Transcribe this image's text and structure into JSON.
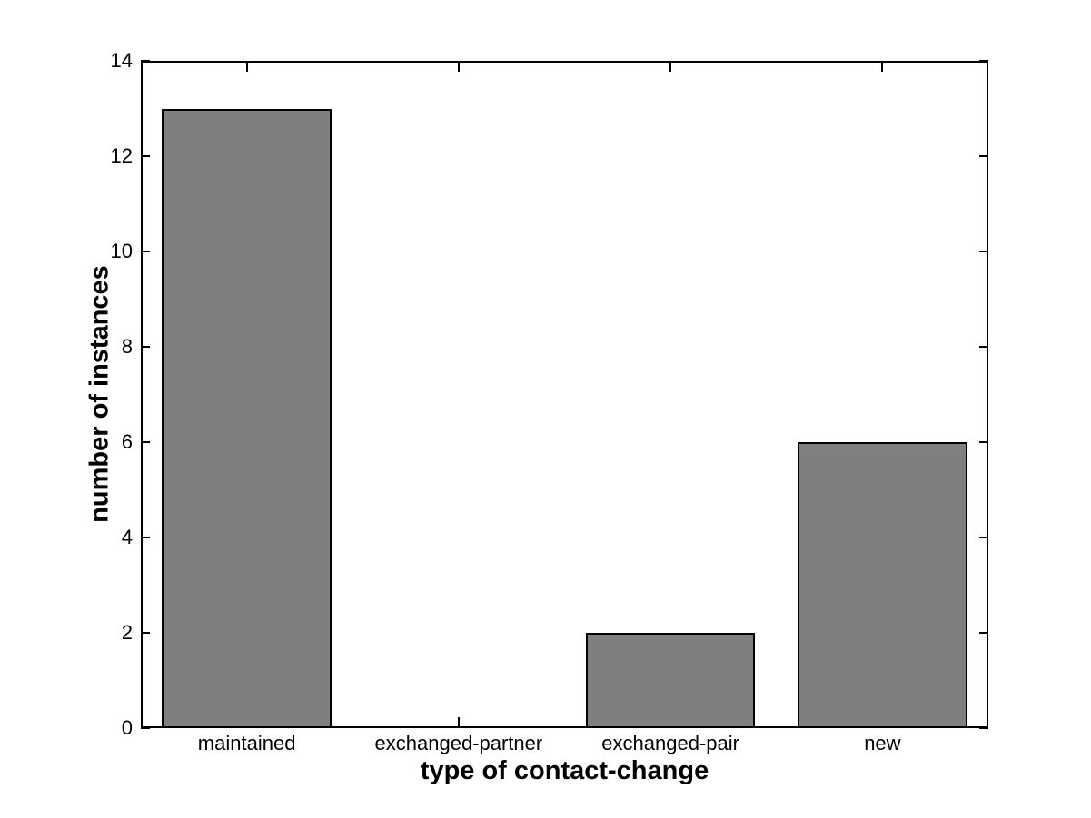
{
  "chart_data": {
    "type": "bar",
    "categories": [
      "maintained",
      "exchanged-partner",
      "exchanged-pair",
      "new"
    ],
    "values": [
      13,
      0,
      2,
      6
    ],
    "title": "",
    "xlabel": "type of contact-change",
    "ylabel": "number of instances",
    "ylim": [
      0,
      14
    ],
    "yticks": [
      0,
      2,
      4,
      6,
      8,
      10,
      12,
      14
    ],
    "bar_width_fraction": 0.8,
    "bar_fill_color": "#7f7f7f",
    "bar_edge_color": "#000000",
    "axis_color": "#000000",
    "background_color": "#ffffff",
    "grid": false,
    "legend_position": "none",
    "tick_direction": "in"
  }
}
